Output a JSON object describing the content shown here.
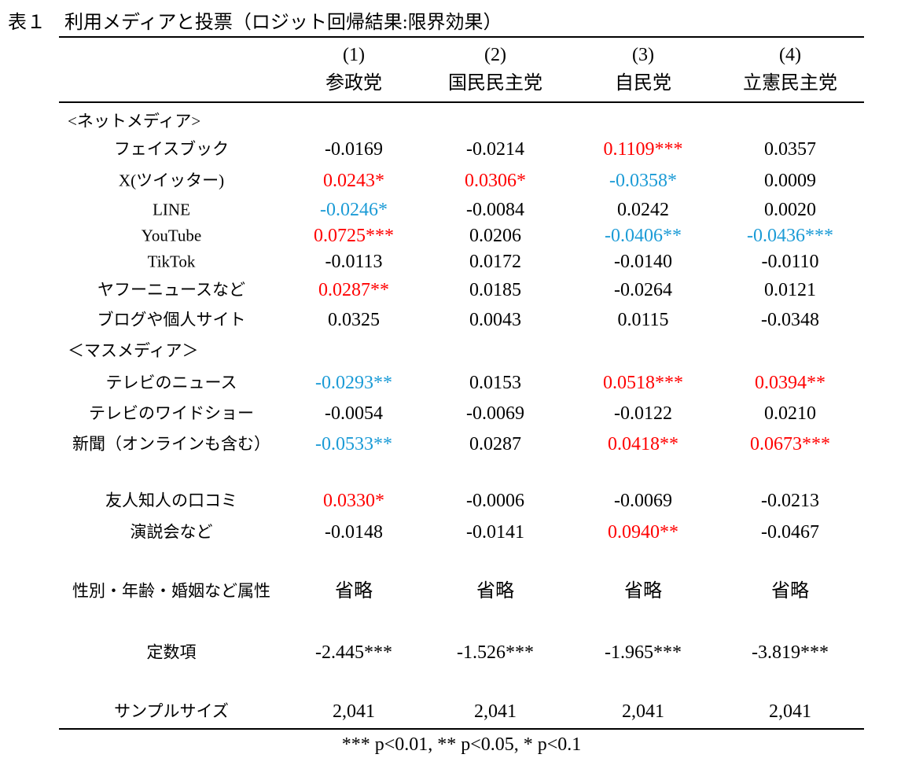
{
  "title": "表１　利用メディアと投票（ロジット回帰結果:限界効果）",
  "colors": {
    "positive": "#ff0000",
    "negative": "#1b9bd6",
    "neutral": "#000000"
  },
  "columns": [
    {
      "num": "(1)",
      "party": "参政党"
    },
    {
      "num": "(2)",
      "party": "国民民主党"
    },
    {
      "num": "(3)",
      "party": "自民党"
    },
    {
      "num": "(4)",
      "party": "立憲民主党"
    }
  ],
  "sections": {
    "net": "<ネットメディア>",
    "mass": "＜マスメディア＞"
  },
  "rows": [
    {
      "label": "フェイスブック",
      "cells": [
        {
          "v": "-0.0169",
          "c": "neutral"
        },
        {
          "v": "-0.0214",
          "c": "neutral"
        },
        {
          "v": "0.1109***",
          "c": "positive"
        },
        {
          "v": "0.0357",
          "c": "neutral"
        }
      ]
    },
    {
      "label": "X(ツイッター)",
      "cells": [
        {
          "v": "0.0243*",
          "c": "positive"
        },
        {
          "v": "0.0306*",
          "c": "positive"
        },
        {
          "v": "-0.0358*",
          "c": "negative"
        },
        {
          "v": "0.0009",
          "c": "neutral"
        }
      ]
    },
    {
      "label": "LINE",
      "cells": [
        {
          "v": "-0.0246*",
          "c": "negative"
        },
        {
          "v": "-0.0084",
          "c": "neutral"
        },
        {
          "v": "0.0242",
          "c": "neutral"
        },
        {
          "v": "0.0020",
          "c": "neutral"
        }
      ]
    },
    {
      "label": "YouTube",
      "cells": [
        {
          "v": "0.0725***",
          "c": "positive"
        },
        {
          "v": "0.0206",
          "c": "neutral"
        },
        {
          "v": "-0.0406**",
          "c": "negative"
        },
        {
          "v": "-0.0436***",
          "c": "negative"
        }
      ]
    },
    {
      "label": "TikTok",
      "cells": [
        {
          "v": "-0.0113",
          "c": "neutral"
        },
        {
          "v": "0.0172",
          "c": "neutral"
        },
        {
          "v": "-0.0140",
          "c": "neutral"
        },
        {
          "v": "-0.0110",
          "c": "neutral"
        }
      ]
    },
    {
      "label": "ヤフーニュースなど",
      "cells": [
        {
          "v": "0.0287**",
          "c": "positive"
        },
        {
          "v": "0.0185",
          "c": "neutral"
        },
        {
          "v": "-0.0264",
          "c": "neutral"
        },
        {
          "v": "0.0121",
          "c": "neutral"
        }
      ]
    },
    {
      "label": "ブログや個人サイト",
      "cells": [
        {
          "v": "0.0325",
          "c": "neutral"
        },
        {
          "v": "0.0043",
          "c": "neutral"
        },
        {
          "v": "0.0115",
          "c": "neutral"
        },
        {
          "v": "-0.0348",
          "c": "neutral"
        }
      ]
    },
    {
      "label": "テレビのニュース",
      "cells": [
        {
          "v": "-0.0293**",
          "c": "negative"
        },
        {
          "v": "0.0153",
          "c": "neutral"
        },
        {
          "v": "0.0518***",
          "c": "positive"
        },
        {
          "v": "0.0394**",
          "c": "positive"
        }
      ]
    },
    {
      "label": "テレビのワイドショー",
      "cells": [
        {
          "v": "-0.0054",
          "c": "neutral"
        },
        {
          "v": "-0.0069",
          "c": "neutral"
        },
        {
          "v": "-0.0122",
          "c": "neutral"
        },
        {
          "v": "0.0210",
          "c": "neutral"
        }
      ]
    },
    {
      "label": "新聞（オンラインも含む）",
      "cells": [
        {
          "v": "-0.0533**",
          "c": "negative"
        },
        {
          "v": "0.0287",
          "c": "neutral"
        },
        {
          "v": "0.0418**",
          "c": "positive"
        },
        {
          "v": "0.0673***",
          "c": "positive"
        }
      ]
    },
    {
      "label": "友人知人の口コミ",
      "cells": [
        {
          "v": "0.0330*",
          "c": "positive"
        },
        {
          "v": "-0.0006",
          "c": "neutral"
        },
        {
          "v": "-0.0069",
          "c": "neutral"
        },
        {
          "v": "-0.0213",
          "c": "neutral"
        }
      ]
    },
    {
      "label": "演説会など",
      "cells": [
        {
          "v": "-0.0148",
          "c": "neutral"
        },
        {
          "v": "-0.0141",
          "c": "neutral"
        },
        {
          "v": "0.0940**",
          "c": "positive"
        },
        {
          "v": "-0.0467",
          "c": "neutral"
        }
      ]
    },
    {
      "label": "性別・年齢・婚姻など属性",
      "cells": [
        {
          "v": "省略",
          "c": "neutral"
        },
        {
          "v": "省略",
          "c": "neutral"
        },
        {
          "v": "省略",
          "c": "neutral"
        },
        {
          "v": "省略",
          "c": "neutral"
        }
      ]
    },
    {
      "label": "定数項",
      "cells": [
        {
          "v": "-2.445***",
          "c": "neutral"
        },
        {
          "v": "-1.526***",
          "c": "neutral"
        },
        {
          "v": "-1.965***",
          "c": "neutral"
        },
        {
          "v": "-3.819***",
          "c": "neutral"
        }
      ]
    },
    {
      "label": "サンプルサイズ",
      "cells": [
        {
          "v": "2,041",
          "c": "neutral"
        },
        {
          "v": "2,041",
          "c": "neutral"
        },
        {
          "v": "2,041",
          "c": "neutral"
        },
        {
          "v": "2,041",
          "c": "neutral"
        }
      ]
    }
  ],
  "note": "*** p<0.01, ** p<0.05, * p<0.1"
}
